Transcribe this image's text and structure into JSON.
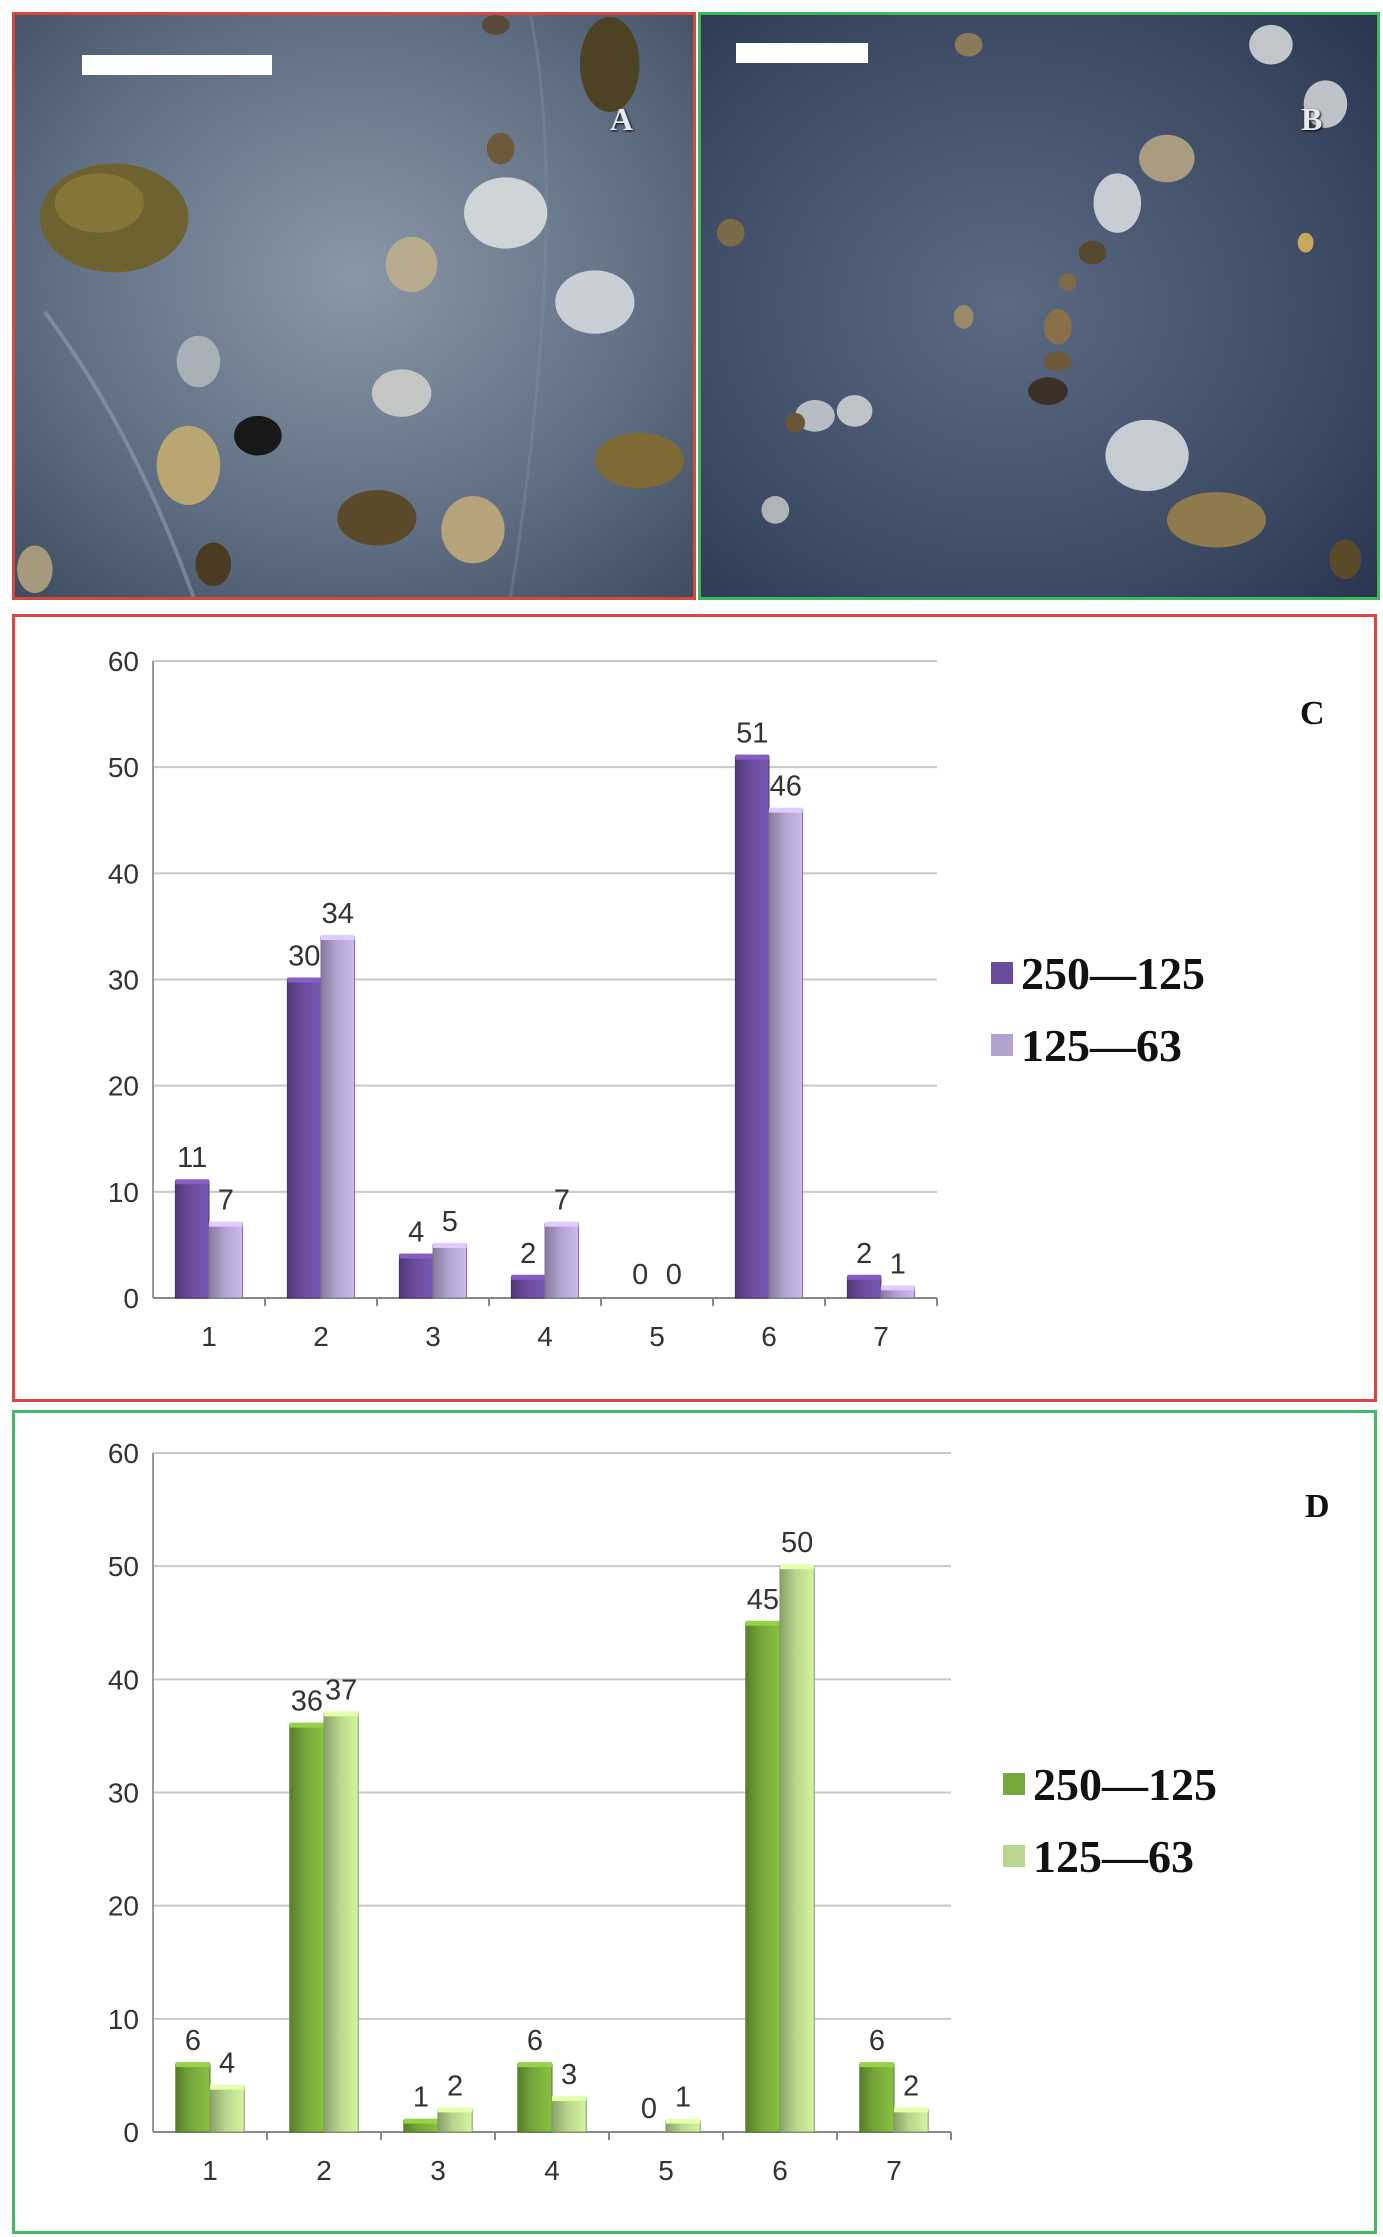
{
  "photos": [
    {
      "letter": "A",
      "border_color": "#d9463e"
    },
    {
      "letter": "B",
      "border_color": "#3cb85c"
    }
  ],
  "chart_data": [
    {
      "panel_letter": "C",
      "type": "bar",
      "categories": [
        "1",
        "2",
        "3",
        "4",
        "5",
        "6",
        "7"
      ],
      "series": [
        {
          "name": "250—125",
          "values": [
            11,
            30,
            4,
            2,
            0,
            51,
            2
          ],
          "color": "#6a4c9c"
        },
        {
          "name": "125—63",
          "values": [
            7,
            34,
            5,
            7,
            0,
            46,
            1
          ],
          "color": "#b3a2cf"
        }
      ],
      "ylim": [
        0,
        60
      ],
      "yticks": [
        0,
        10,
        20,
        30,
        40,
        50,
        60
      ],
      "grid": true,
      "legend_position": "right",
      "border_color": "#e0443c"
    },
    {
      "panel_letter": "D",
      "type": "bar",
      "categories": [
        "1",
        "2",
        "3",
        "4",
        "5",
        "6",
        "7"
      ],
      "series": [
        {
          "name": "250—125",
          "values": [
            6,
            36,
            1,
            6,
            0,
            45,
            6
          ],
          "color": "#76a83a"
        },
        {
          "name": "125—63",
          "values": [
            4,
            37,
            2,
            3,
            1,
            50,
            2
          ],
          "color": "#b8d68c"
        }
      ],
      "ylim": [
        0,
        60
      ],
      "yticks": [
        0,
        10,
        20,
        30,
        40,
        50,
        60
      ],
      "grid": true,
      "legend_position": "right",
      "border_color": "#45b866"
    }
  ]
}
